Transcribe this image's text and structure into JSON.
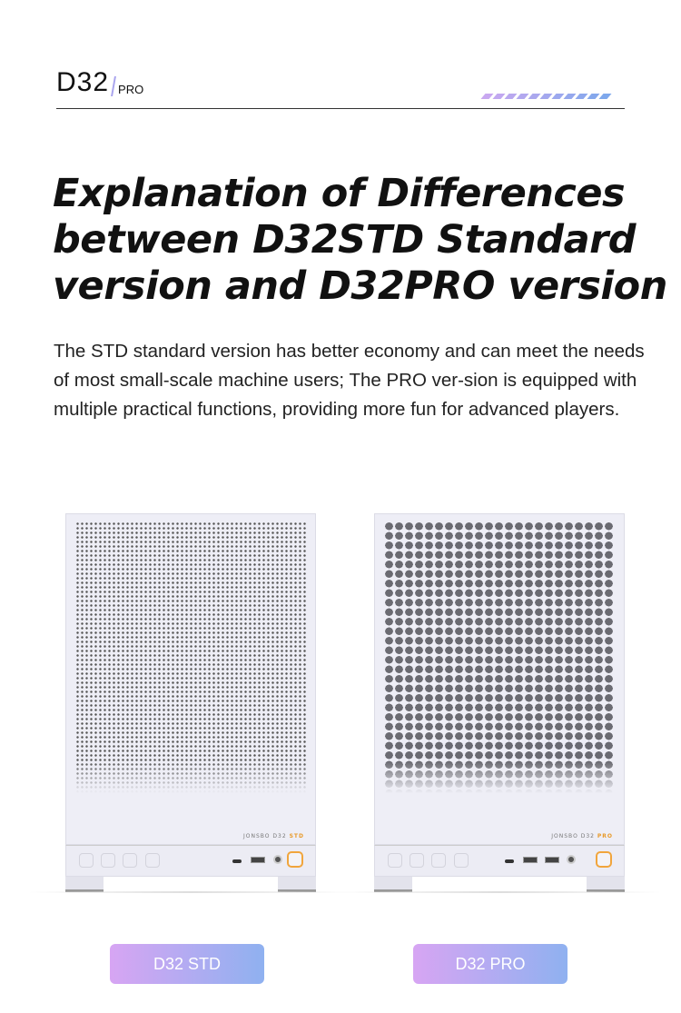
{
  "header": {
    "model": "D32",
    "variant": "PRO",
    "stripe_colors": [
      "#c8a8f0",
      "#7fa8ec"
    ]
  },
  "title": "Explanation of Differences between D32STD Standard version and D32PRO version",
  "description": "The STD standard version has better economy and can meet the needs of most small-scale machine users; The PRO ver-sion is equipped with multiple practical functions, providing more fun for advanced players.",
  "products": [
    {
      "label": "D32 STD",
      "logo_brand": "JONSBO D32",
      "logo_model": "STD"
    },
    {
      "label": "D32 PRO",
      "logo_brand": "JONSBO D32",
      "logo_model": "PRO"
    }
  ],
  "colors": {
    "accent_orange": "#f1a53c",
    "label_gradient_start": "#d7a5f3",
    "label_gradient_end": "#8fb1f0"
  }
}
